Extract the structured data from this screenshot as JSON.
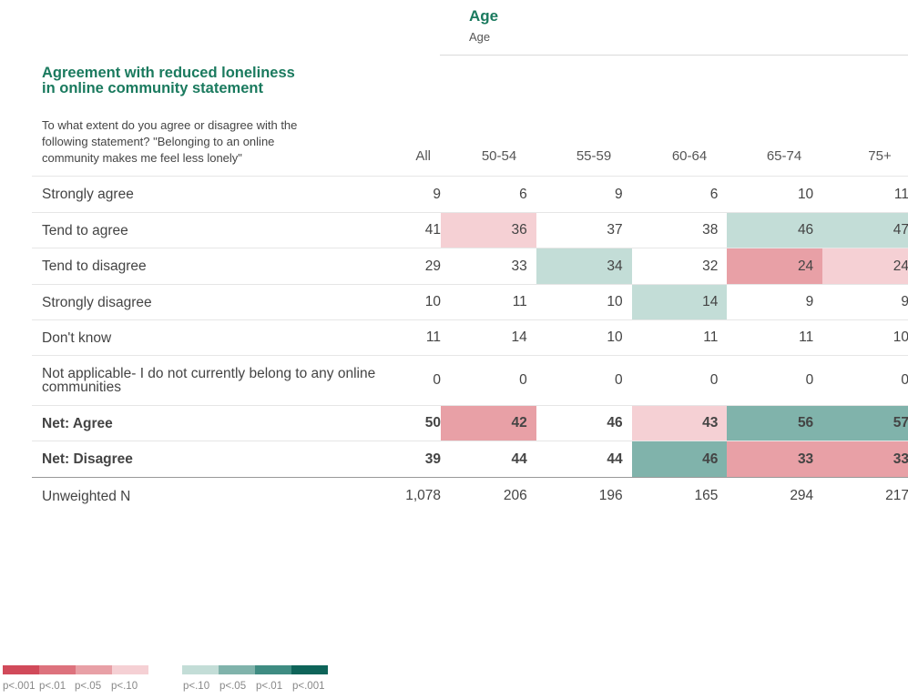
{
  "banner": {
    "title": "Age",
    "subtitle": "Age"
  },
  "question": {
    "title": "Agreement with reduced loneliness in online community statement",
    "text": "To what extent do you agree or disagree with the following statement? \"Belonging to an online community makes me feel less lonely\""
  },
  "columns": [
    "All",
    "50-54",
    "55-59",
    "60-64",
    "65-74",
    "75+"
  ],
  "rows": [
    {
      "label": "Strongly agree",
      "bold": false,
      "values": [
        "9",
        "6",
        "9",
        "6",
        "10",
        "11"
      ],
      "sig": [
        "",
        "",
        "",
        "",
        "",
        ""
      ]
    },
    {
      "label": "Tend to agree",
      "bold": false,
      "values": [
        "41",
        "36",
        "37",
        "38",
        "46",
        "47"
      ],
      "sig": [
        "",
        "neg10",
        "",
        "",
        "pos10",
        "pos10"
      ]
    },
    {
      "label": "Tend to disagree",
      "bold": false,
      "values": [
        "29",
        "33",
        "34",
        "32",
        "24",
        "24"
      ],
      "sig": [
        "",
        "",
        "pos10",
        "",
        "neg05",
        "neg10"
      ]
    },
    {
      "label": "Strongly disagree",
      "bold": false,
      "values": [
        "10",
        "11",
        "10",
        "14",
        "9",
        "9"
      ],
      "sig": [
        "",
        "",
        "",
        "pos10",
        "",
        ""
      ]
    },
    {
      "label": "Don't know",
      "bold": false,
      "values": [
        "11",
        "14",
        "10",
        "11",
        "11",
        "10"
      ],
      "sig": [
        "",
        "",
        "",
        "",
        "",
        ""
      ]
    },
    {
      "label": "Not applicable- I do not currently belong to any online communities",
      "bold": false,
      "values": [
        "0",
        "0",
        "0",
        "0",
        "0",
        "0"
      ],
      "sig": [
        "",
        "",
        "",
        "",
        "",
        ""
      ]
    },
    {
      "label": "Net: Agree",
      "bold": true,
      "values": [
        "50",
        "42",
        "46",
        "43",
        "56",
        "57"
      ],
      "sig": [
        "",
        "neg05",
        "",
        "neg10",
        "pos05",
        "pos05"
      ]
    },
    {
      "label": "Net: Disagree",
      "bold": true,
      "values": [
        "39",
        "44",
        "44",
        "46",
        "33",
        "33"
      ],
      "sig": [
        "",
        "",
        "",
        "pos05",
        "neg05",
        "neg05"
      ]
    },
    {
      "label": "Unweighted N",
      "bold": false,
      "values": [
        "1,078",
        "206",
        "196",
        "165",
        "294",
        "217"
      ],
      "sig": [
        "",
        "",
        "",
        "",
        "",
        ""
      ]
    }
  ],
  "colors": {
    "neg001": "#d14a5a",
    "neg01": "#dd727d",
    "neg05": "#e8a0a6",
    "neg10": "#f5d0d4",
    "pos10": "#c3ddd7",
    "pos05": "#80b3ab",
    "pos01": "#3f8c82",
    "pos001": "#0e6459"
  },
  "legend": {
    "negative": [
      "p<.001",
      "p<.01",
      "p<.05",
      "p<.10"
    ],
    "positive": [
      "p<.10",
      "p<.05",
      "p<.01",
      "p<.001"
    ]
  }
}
